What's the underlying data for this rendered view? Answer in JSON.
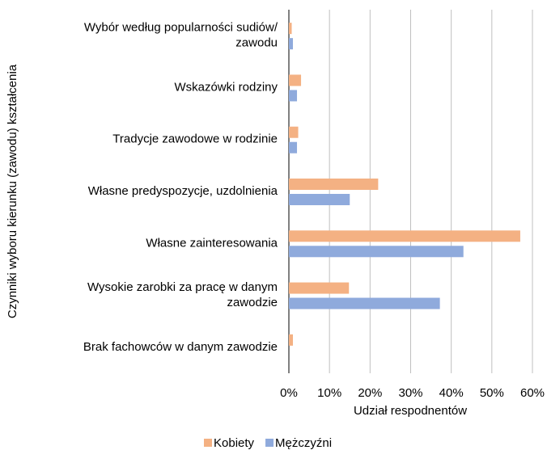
{
  "chart_data": {
    "type": "bar",
    "orientation": "horizontal",
    "x_label": "Udział respodnentów",
    "y_label": "Czynniki wyboru kierunku (zawodu) kształcenia",
    "categories": [
      "Wybór według popularności sudiów/ zawodu",
      "Wskazówki rodziny",
      "Tradycje zawodowe w rodzinie",
      "Własne predyspozycje, uzdolnienia",
      "Własne zainteresowania",
      "Wysokie zarobki za pracę w danym zawodzie",
      "Brak fachowców w danym zawodzie"
    ],
    "series": [
      {
        "name": "Kobiety",
        "color": "#f4b183",
        "values": [
          0.7,
          3.0,
          2.3,
          22.0,
          57.0,
          14.8,
          1.0
        ]
      },
      {
        "name": "Mężczyźni",
        "color": "#8faadc",
        "values": [
          1.0,
          2.0,
          2.0,
          15.0,
          43.0,
          37.2,
          0
        ]
      }
    ],
    "xlim": [
      0,
      60
    ],
    "xticks": [
      {
        "value": 0,
        "label": "0%"
      },
      {
        "value": 10,
        "label": "10%"
      },
      {
        "value": 20,
        "label": "20%"
      },
      {
        "value": 30,
        "label": "30%"
      },
      {
        "value": 40,
        "label": "40%"
      },
      {
        "value": 50,
        "label": "50%"
      },
      {
        "value": 60,
        "label": "60%"
      }
    ],
    "grid": true,
    "legend": "bottom"
  }
}
